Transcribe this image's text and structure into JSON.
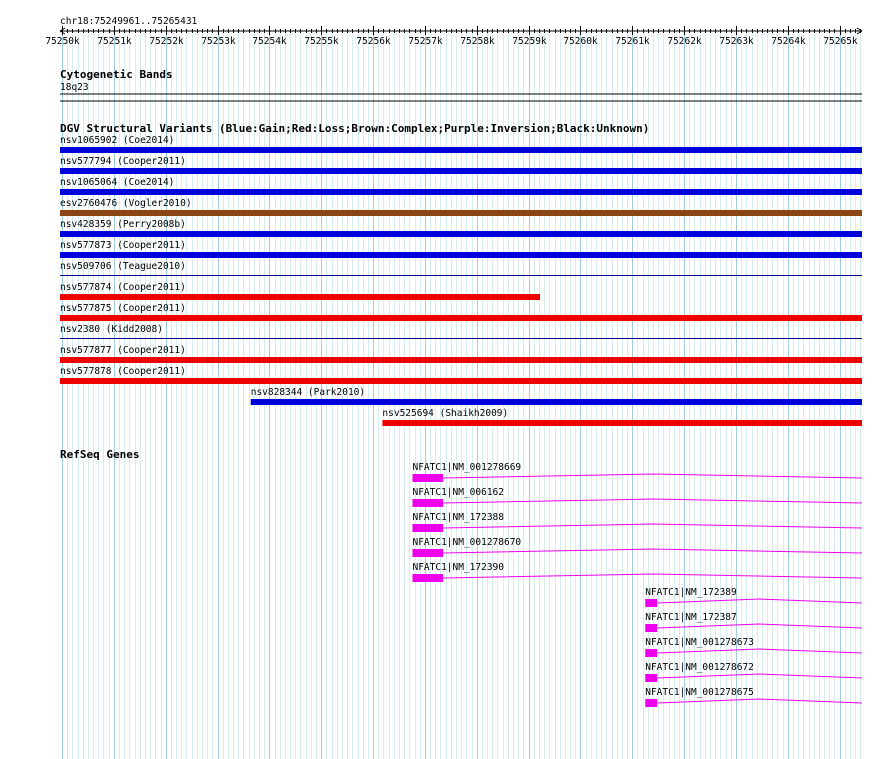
{
  "locus": "chr18:75249961..75265431",
  "ruler": {
    "start": 75249961,
    "end": 75265431,
    "ticks": [
      "75250k",
      "75251k",
      "75252k",
      "75253k",
      "75254k",
      "75255k",
      "75256k",
      "75257k",
      "75258k",
      "75259k",
      "75260k",
      "75261k",
      "75262k",
      "75263k",
      "75264k",
      "75265k"
    ]
  },
  "tracks": {
    "cyto": {
      "title": "Cytogenetic Bands",
      "band": "18q23"
    },
    "dgv": {
      "title": "DGV Structural Variants (Blue:Gain;Red:Loss;Brown:Complex;Purple:Inversion;Black:Unknown)",
      "colors": {
        "gain": "#0000dd",
        "loss": "#ee0000",
        "complex": "#8b4513",
        "thin": "#000088"
      },
      "features": [
        {
          "label": "nsv1065902 (Coe2014)",
          "type": "gain",
          "start": 75249961,
          "end": 75265431
        },
        {
          "label": "nsv577794 (Cooper2011)",
          "type": "gain",
          "start": 75249961,
          "end": 75265431
        },
        {
          "label": "nsv1065064 (Coe2014)",
          "type": "gain",
          "start": 75249961,
          "end": 75265431
        },
        {
          "label": "esv2760476 (Vogler2010)",
          "type": "complex",
          "start": 75249961,
          "end": 75265431
        },
        {
          "label": "nsv428359 (Perry2008b)",
          "type": "gain",
          "start": 75249961,
          "end": 75265431
        },
        {
          "label": "nsv577873 (Cooper2011)",
          "type": "gain",
          "start": 75249961,
          "end": 75265431
        },
        {
          "label": "nsv509706 (Teague2010)",
          "type": "thin",
          "start": 75249961,
          "end": 75265431
        },
        {
          "label": "nsv577874 (Cooper2011)",
          "type": "loss",
          "start": 75249961,
          "end": 75259220
        },
        {
          "label": "nsv577875 (Cooper2011)",
          "type": "loss",
          "start": 75249961,
          "end": 75265431
        },
        {
          "label": "nsv2380 (Kidd2008)",
          "type": "thin",
          "start": 75249961,
          "end": 75265431
        },
        {
          "label": "nsv577877 (Cooper2011)",
          "type": "loss",
          "start": 75249961,
          "end": 75265431
        },
        {
          "label": "nsv577878 (Cooper2011)",
          "type": "loss",
          "start": 75249961,
          "end": 75265431
        },
        {
          "label": "nsv828344 (Park2010)",
          "type": "gain",
          "start": 75253640,
          "end": 75265431
        },
        {
          "label": "nsv525694 (Shaikh2009)",
          "type": "loss",
          "start": 75256180,
          "end": 75265431
        }
      ]
    },
    "refseq": {
      "title": "RefSeq Genes",
      "color": "#ee00ee",
      "genes": [
        {
          "label": "NFATC1|NM_001278669",
          "start": 75256760,
          "exonEnd": 75257350,
          "end": 75265431
        },
        {
          "label": "NFATC1|NM_006162",
          "start": 75256760,
          "exonEnd": 75257350,
          "end": 75265431
        },
        {
          "label": "NFATC1|NM_172388",
          "start": 75256760,
          "exonEnd": 75257350,
          "end": 75265431
        },
        {
          "label": "NFATC1|NM_001278670",
          "start": 75256760,
          "exonEnd": 75257350,
          "end": 75265431
        },
        {
          "label": "NFATC1|NM_172390",
          "start": 75256760,
          "exonEnd": 75257350,
          "end": 75265431
        },
        {
          "label": "NFATC1|NM_172389",
          "start": 75261250,
          "exonEnd": 75261480,
          "end": 75265431
        },
        {
          "label": "NFATC1|NM_172387",
          "start": 75261250,
          "exonEnd": 75261480,
          "end": 75265431
        },
        {
          "label": "NFATC1|NM_001278673",
          "start": 75261250,
          "exonEnd": 75261480,
          "end": 75265431
        },
        {
          "label": "NFATC1|NM_001278672",
          "start": 75261250,
          "exonEnd": 75261480,
          "end": 75265431
        },
        {
          "label": "NFATC1|NM_001278675",
          "start": 75261250,
          "exonEnd": 75261480,
          "end": 75265431
        }
      ]
    }
  }
}
